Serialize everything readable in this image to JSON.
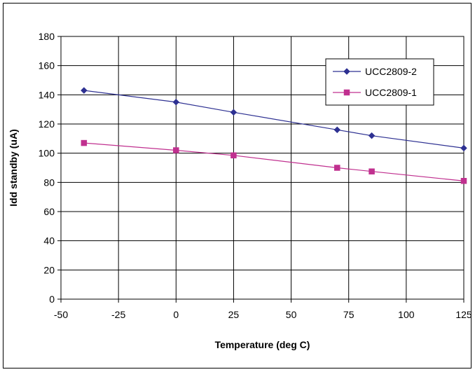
{
  "chart_data": {
    "type": "line",
    "title": "",
    "xlabel": "Temperature (deg C)",
    "ylabel": "Idd standby (uA)",
    "xlim": [
      -50,
      125
    ],
    "ylim": [
      0,
      180
    ],
    "xticks": [
      -50,
      -25,
      0,
      25,
      50,
      75,
      100,
      125
    ],
    "yticks": [
      0,
      20,
      40,
      60,
      80,
      100,
      120,
      140,
      160,
      180
    ],
    "grid": true,
    "legend_position": "top-right",
    "series": [
      {
        "name": "UCC2809-2",
        "color": "#2E3192",
        "marker": "diamond",
        "x": [
          -40,
          0,
          25,
          70,
          85,
          125
        ],
        "y": [
          143,
          135,
          128,
          116,
          112,
          103.5
        ]
      },
      {
        "name": "UCC2809-1",
        "color": "#C0308F",
        "marker": "square",
        "x": [
          -40,
          0,
          25,
          70,
          85,
          125
        ],
        "y": [
          107,
          102,
          98.5,
          90,
          87.5,
          81
        ]
      }
    ]
  }
}
